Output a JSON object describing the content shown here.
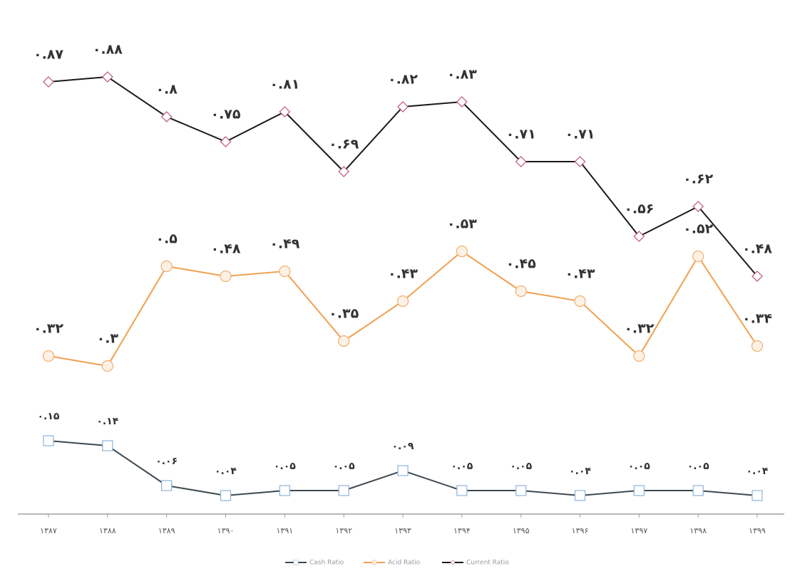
{
  "chart_data": {
    "type": "line",
    "categories": [
      "۱۳۸۷",
      "۱۳۸۸",
      "۱۳۸۹",
      "۱۳۹۰",
      "۱۳۹۱",
      "۱۳۹۲",
      "۱۳۹۳",
      "۱۳۹۴",
      "۱۳۹۵",
      "۱۳۹۶",
      "۱۳۹۷",
      "۱۳۹۸",
      "۱۳۹۹"
    ],
    "ylim": [
      0,
      1
    ],
    "series": [
      {
        "name": "Cash Ratio",
        "color": "#3d4a4f",
        "marker": "square",
        "marker_color": "#8fb3d9",
        "values": [
          0.15,
          0.14,
          0.06,
          0.04,
          0.05,
          0.05,
          0.09,
          0.05,
          0.05,
          0.04,
          0.05,
          0.05,
          0.04
        ],
        "value_labels": [
          "۰.۱۵",
          "۰.۱۴",
          "۰.۰۶",
          "۰.۰۴",
          "۰.۰۵",
          "۰.۰۵",
          "۰.۰۹",
          "۰.۰۵",
          "۰.۰۵",
          "۰.۰۴",
          "۰.۰۵",
          "۰.۰۵",
          "۰.۰۴"
        ]
      },
      {
        "name": "Acid Ratio",
        "color": "#f0a050",
        "marker": "circle",
        "marker_color": "#f0b070",
        "values": [
          0.32,
          0.3,
          0.5,
          0.48,
          0.49,
          0.35,
          0.43,
          0.53,
          0.45,
          0.43,
          0.32,
          0.52,
          0.34
        ],
        "value_labels": [
          "۰.۳۲",
          "۰.۳",
          "۰.۵",
          "۰.۴۸",
          "۰.۴۹",
          "۰.۳۵",
          "۰.۴۳",
          "۰.۵۳",
          "۰.۴۵",
          "۰.۴۳",
          "۰.۳۲",
          "۰.۵۲",
          "۰.۳۴"
        ]
      },
      {
        "name": "Current Ratio",
        "color": "#1a1a1a",
        "marker": "diamond",
        "marker_color": "#c05070",
        "values": [
          0.87,
          0.88,
          0.8,
          0.75,
          0.81,
          0.69,
          0.82,
          0.83,
          0.71,
          0.71,
          0.56,
          0.62,
          0.48
        ],
        "value_labels": [
          "۰.۸۷",
          "۰.۸۸",
          "۰.۸",
          "۰.۷۵",
          "۰.۸۱",
          "۰.۶۹",
          "۰.۸۲",
          "۰.۸۳",
          "۰.۷۱",
          "۰.۷۱",
          "۰.۵۶",
          "۰.۶۲",
          "۰.۴۸"
        ]
      }
    ]
  }
}
